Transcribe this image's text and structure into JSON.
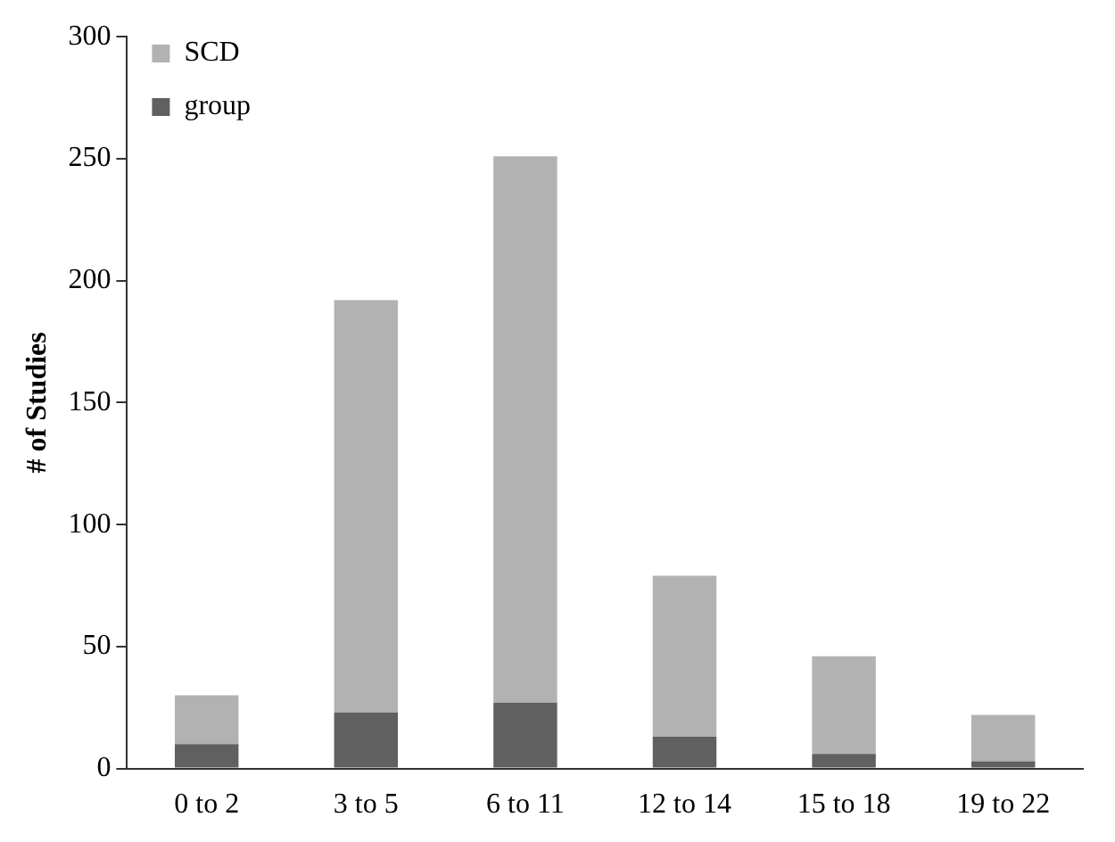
{
  "chart_data": {
    "type": "bar",
    "ylabel": "# of Studies",
    "categories": [
      "0 to 2",
      "3 to 5",
      "6 to 11",
      "12 to 14",
      "15 to 18",
      "19 to 22"
    ],
    "stacked": true,
    "series": [
      {
        "name": "group",
        "color": "#606060",
        "values": [
          10,
          23,
          27,
          13,
          6,
          3
        ]
      },
      {
        "name": "SCD",
        "color": "#b2b2b2",
        "values": [
          20,
          169,
          224,
          66,
          40,
          19
        ]
      }
    ],
    "ylim": [
      0,
      300
    ],
    "yticks": [
      0,
      50,
      100,
      150,
      200,
      250,
      300
    ],
    "grid": false,
    "legend": "top left"
  }
}
